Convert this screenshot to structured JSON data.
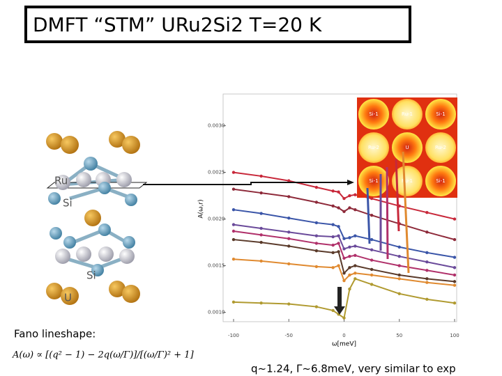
{
  "slide": {
    "title": "DMFT “STM” URu2Si2 T=20 K",
    "structure_labels": [
      "Ru",
      "Si",
      "Si",
      "U"
    ],
    "fano_heading": "Fano lineshape:",
    "formula": "A(ω) ∝ [(q² − 1) − 2q(ω/Γ)]/[(ω/Γ)² + 1]",
    "note": "q~1.24, Γ~6.8meV, very similar to exp"
  },
  "inset": {
    "labels": [
      "Si-1",
      "Ru-1",
      "Si-1",
      "Ru-2",
      "U",
      "Ru-2",
      "Si-1",
      "Ru-1",
      "Si-1"
    ]
  },
  "chart_data": {
    "type": "line",
    "xlabel": "ω[meV]",
    "ylabel": "A(ω,r)",
    "x": [
      -100,
      -75,
      -50,
      -25,
      -10,
      -5,
      0,
      5,
      10,
      25,
      50,
      75,
      100
    ],
    "series": [
      {
        "color": "#c8283a",
        "values": [
          0.0025,
          0.00246,
          0.00241,
          0.00234,
          0.0023,
          0.00229,
          0.00222,
          0.00225,
          0.00226,
          0.00222,
          0.00214,
          0.00207,
          0.002
        ]
      },
      {
        "color": "#8e2a3a",
        "values": [
          0.00232,
          0.00228,
          0.00224,
          0.00218,
          0.00214,
          0.00212,
          0.00208,
          0.00212,
          0.0021,
          0.00204,
          0.00195,
          0.00186,
          0.00178
        ]
      },
      {
        "color": "#3a55a8",
        "values": [
          0.0021,
          0.00206,
          0.00201,
          0.00196,
          0.00194,
          0.00192,
          0.00179,
          0.0018,
          0.00182,
          0.00178,
          0.0017,
          0.00164,
          0.00159
        ]
      },
      {
        "color": "#6a4a9a",
        "values": [
          0.00194,
          0.0019,
          0.00186,
          0.00182,
          0.00181,
          0.00182,
          0.00168,
          0.0017,
          0.00171,
          0.00167,
          0.0016,
          0.00154,
          0.00148
        ]
      },
      {
        "color": "#b0306a",
        "values": [
          0.00187,
          0.00183,
          0.00179,
          0.00174,
          0.00172,
          0.00174,
          0.00158,
          0.0016,
          0.00161,
          0.00156,
          0.0015,
          0.00145,
          0.0014
        ]
      },
      {
        "color": "#5a3a2a",
        "values": [
          0.00178,
          0.00175,
          0.00171,
          0.00166,
          0.00164,
          0.00165,
          0.00142,
          0.00148,
          0.0015,
          0.00146,
          0.0014,
          0.00136,
          0.00133
        ]
      },
      {
        "color": "#e08a30",
        "values": [
          0.00157,
          0.00155,
          0.00152,
          0.00149,
          0.00148,
          0.0015,
          0.00134,
          0.0014,
          0.00142,
          0.0014,
          0.00136,
          0.00132,
          0.00129
        ]
      },
      {
        "color": "#b09a30",
        "values": [
          0.00111,
          0.0011,
          0.00109,
          0.00106,
          0.00102,
          0.00098,
          0.00094,
          0.00125,
          0.00136,
          0.0013,
          0.0012,
          0.00114,
          0.0011
        ]
      }
    ],
    "xlim": [
      -100,
      100
    ],
    "xticks": [
      -100,
      -50,
      0,
      50,
      100
    ],
    "ylim": [
      0.0009,
      0.00334
    ],
    "yticks": [
      {
        "value": 0.001,
        "label": "0.0010"
      },
      {
        "value": 0.0015,
        "label": "0.0015"
      },
      {
        "value": 0.002,
        "label": "0.0020"
      },
      {
        "value": 0.0025,
        "label": "0.0025"
      },
      {
        "value": 0.003,
        "label": "0.0030"
      }
    ]
  }
}
